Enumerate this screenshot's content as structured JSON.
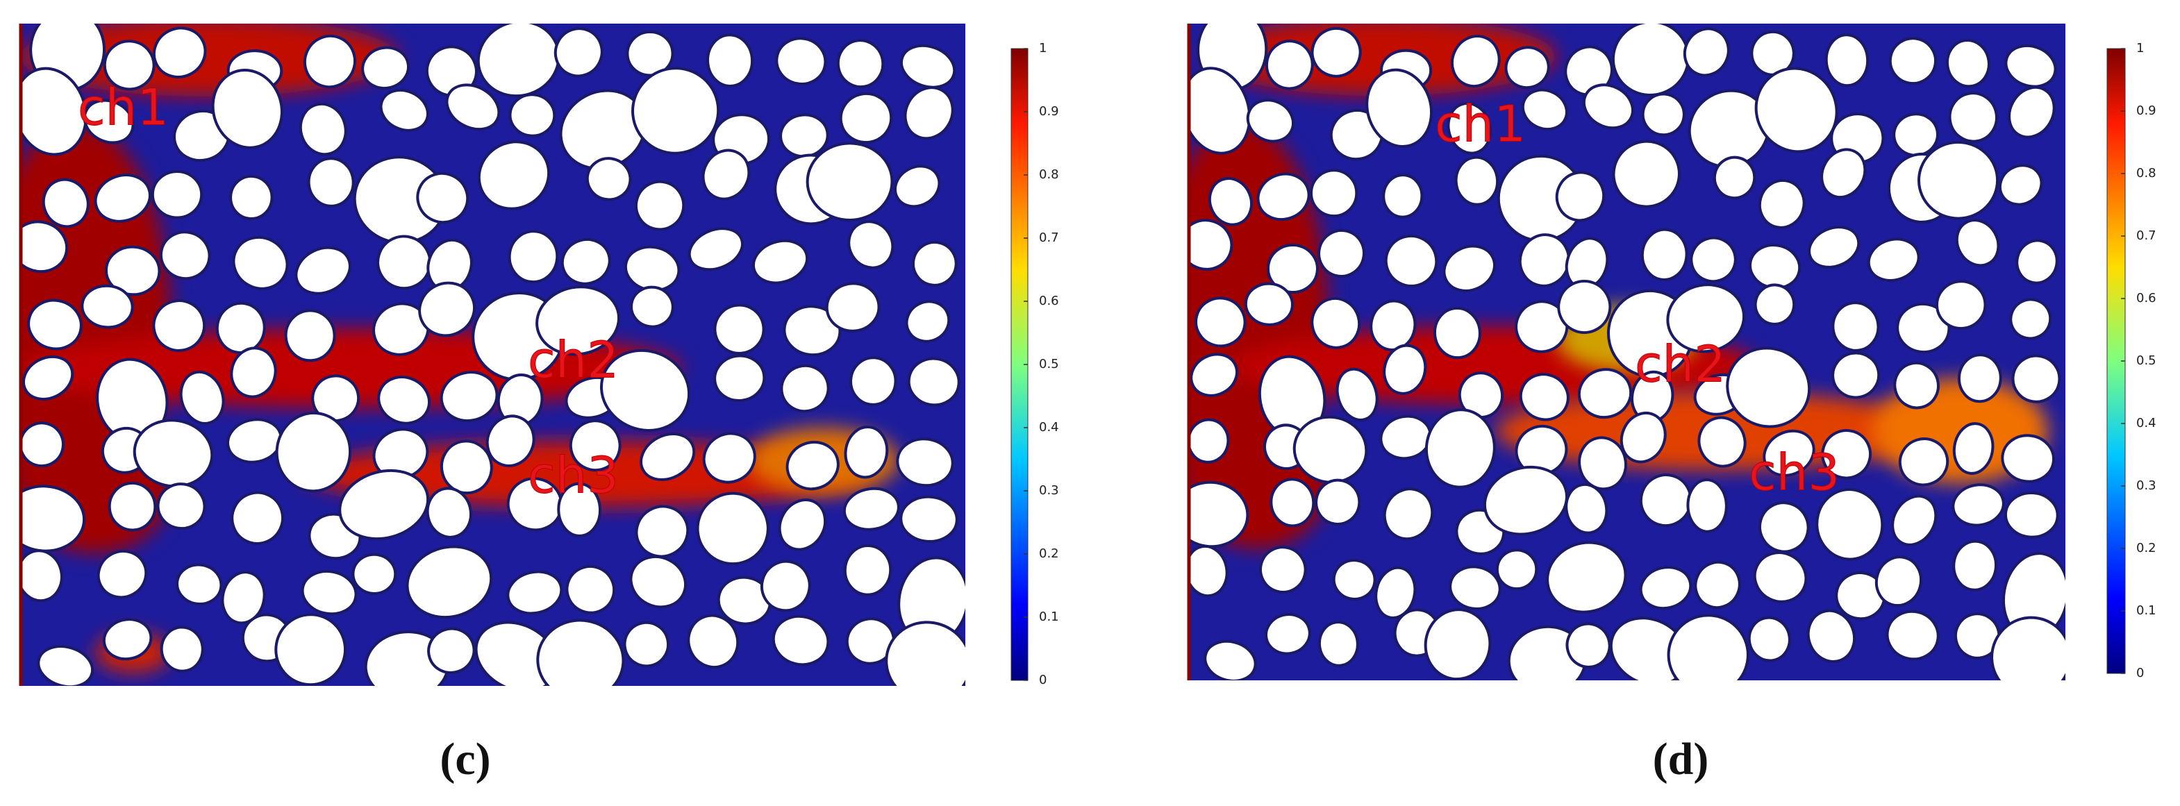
{
  "panels": [
    {
      "caption": "(c)",
      "labels": [
        "ch1",
        "ch2",
        "ch3"
      ],
      "colorbar": {
        "lim": [
          0,
          1
        ],
        "ticks": [
          0,
          0.1,
          0.2,
          0.3,
          0.4,
          0.5,
          0.6,
          0.7,
          0.8,
          0.9,
          1
        ]
      }
    },
    {
      "caption": "(d)",
      "labels": [
        "ch1",
        "ch2",
        "ch3"
      ],
      "colorbar": {
        "lim": [
          0,
          1
        ],
        "ticks": [
          0,
          0.1,
          0.2,
          0.3,
          0.4,
          0.5,
          0.6,
          0.7,
          0.8,
          0.9,
          1
        ]
      }
    }
  ]
}
